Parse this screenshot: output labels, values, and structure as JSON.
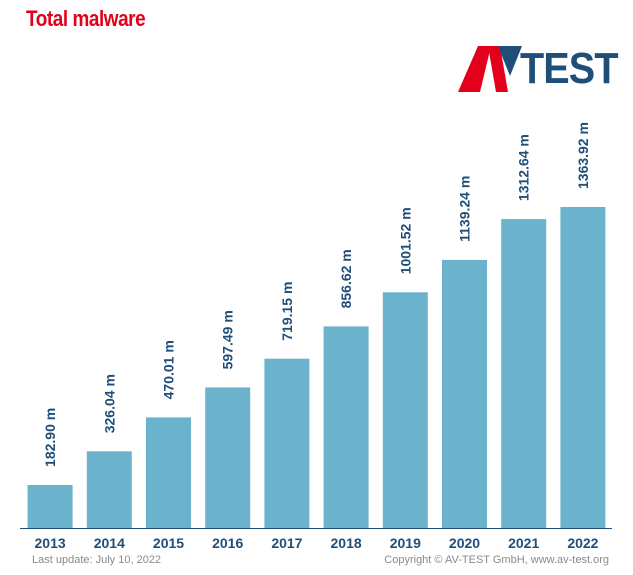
{
  "chart_data": {
    "type": "bar",
    "title": "Total malware",
    "categories": [
      "2013",
      "2014",
      "2015",
      "2016",
      "2017",
      "2018",
      "2019",
      "2020",
      "2021",
      "2022"
    ],
    "values": [
      182.9,
      326.04,
      470.01,
      597.49,
      719.15,
      856.62,
      1001.52,
      1139.24,
      1312.64,
      1363.92
    ],
    "data_labels": [
      "182.90 m",
      "326.04 m",
      "470.01 m",
      "597.49 m",
      "719.15 m",
      "856.62 m",
      "1001.52 m",
      "1139.24 m",
      "1312.64 m",
      "1363.92 m"
    ],
    "ylim": [
      0,
      1400
    ],
    "grid": false,
    "legend": "none"
  },
  "logo": {
    "name": "av-test-logo",
    "text": "TEST"
  },
  "footer": {
    "last_update": "Last update: July 10, 2022",
    "copyright": "Copyright © AV-TEST GmbH, www.av-test.org"
  },
  "colors": {
    "bar": "#6bb3cd",
    "title": "#e3001b",
    "label": "#1f4e79",
    "logo_red": "#e3001b",
    "logo_dark": "#1f4e79",
    "axis": "#1f4e79"
  }
}
